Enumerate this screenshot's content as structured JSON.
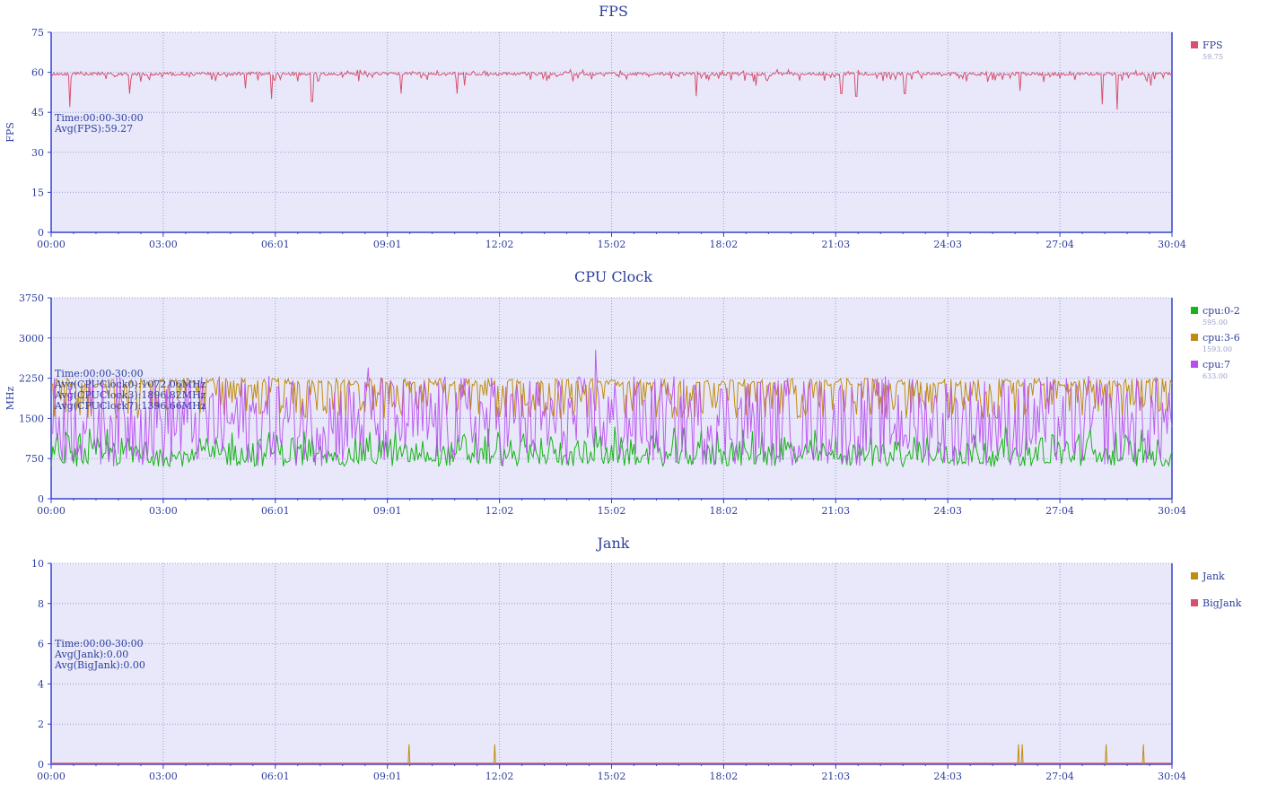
{
  "x_ticks": [
    "00:00",
    "03:00",
    "06:01",
    "09:01",
    "12:02",
    "15:02",
    "18:02",
    "21:03",
    "24:03",
    "27:04",
    "30:04"
  ],
  "colors": {
    "plot_bg": "#e8e8fa",
    "axis": "#3344cc",
    "grid": "#9aa0cc",
    "fps": "#d9506e",
    "cpu02": "#18b418",
    "cpu36": "#c08c10",
    "cpu7": "#b84cf0",
    "jank": "#c08c10",
    "bigjank": "#d9506e"
  },
  "chart_data": [
    {
      "type": "line",
      "title": "FPS",
      "ylabel": "FPS",
      "ylim": [
        0,
        75
      ],
      "yticks": [
        "0",
        "15",
        "30",
        "45",
        "60",
        "75"
      ],
      "xlim": [
        "00:00",
        "30:04"
      ],
      "grid": true,
      "legend_position": "right",
      "annotation": [
        "Time:00:00-30:00",
        "Avg(FPS):59.27"
      ],
      "series": [
        {
          "name": "FPS",
          "legend_value": "59.75",
          "base": 60,
          "jitter": 1.2,
          "dips": [
            [
              0.5,
              47
            ],
            [
              2.1,
              52
            ],
            [
              5.2,
              54
            ],
            [
              5.9,
              50
            ],
            [
              7.0,
              49
            ],
            [
              9.4,
              52
            ],
            [
              10.9,
              52
            ],
            [
              11.1,
              55
            ],
            [
              17.3,
              51
            ],
            [
              18.9,
              55
            ],
            [
              21.2,
              52
            ],
            [
              21.6,
              51
            ],
            [
              22.9,
              52
            ],
            [
              26.0,
              53
            ],
            [
              28.2,
              48
            ],
            [
              28.6,
              46
            ],
            [
              29.5,
              55
            ]
          ]
        }
      ]
    },
    {
      "type": "line",
      "title": "CPU Clock",
      "ylabel": "MHz",
      "ylim": [
        0,
        3750
      ],
      "yticks": [
        "0",
        "750",
        "1500",
        "2250",
        "3000",
        "3750"
      ],
      "xlim": [
        "00:00",
        "30:04"
      ],
      "grid": true,
      "legend_position": "right",
      "annotation": [
        "Time:00:00-30:00",
        "Avg(CPUClock0):1072.06MHz",
        "Avg(CPUClock3):1896.82MHz",
        "Avg(CPUClock7):1396.66MHz"
      ],
      "series": [
        {
          "name": "cpu:0-2",
          "legend_value": "595.00",
          "min": 600,
          "max": 1400,
          "typical": 1000
        },
        {
          "name": "cpu:3-6",
          "legend_value": "1593.00",
          "min": 1500,
          "max": 2250,
          "typical": 1950
        },
        {
          "name": "cpu:7",
          "legend_value": "633.00",
          "min": 600,
          "max": 2300,
          "typical": 1400,
          "peaks": [
            [
              14.6,
              2780
            ],
            [
              8.5,
              2450
            ]
          ]
        }
      ]
    },
    {
      "type": "bar",
      "title": "Jank",
      "ylabel": "",
      "ylim": [
        0,
        10
      ],
      "yticks": [
        "0",
        "2",
        "4",
        "6",
        "8",
        "10"
      ],
      "xlim": [
        "00:00",
        "30:04"
      ],
      "grid": true,
      "legend_position": "right",
      "annotation": [
        "Time:00:00-30:00",
        "Avg(Jank):0.00",
        "Avg(BigJank):0.00"
      ],
      "series": [
        {
          "name": "Jank",
          "events_min": [
            9.6,
            11.9,
            25.95,
            26.05,
            28.3,
            29.3
          ],
          "value": 1
        },
        {
          "name": "BigJank",
          "events_min": [],
          "value": 0
        }
      ]
    }
  ]
}
